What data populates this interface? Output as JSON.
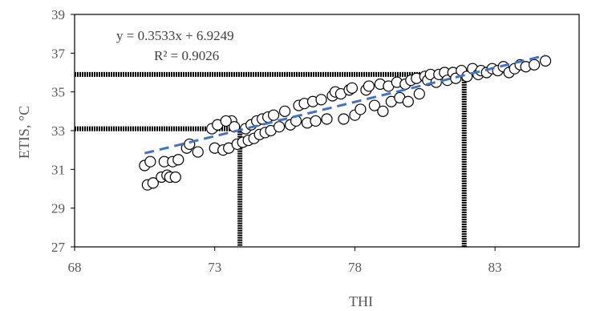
{
  "chart_data": {
    "type": "scatter",
    "xlabel": "THI",
    "ylabel": "ETIS, °C",
    "xlim": [
      68,
      86
    ],
    "ylim": [
      27,
      39
    ],
    "xticks": [
      68,
      73,
      78,
      83
    ],
    "yticks": [
      27,
      29,
      31,
      33,
      35,
      37,
      39
    ],
    "grid": false,
    "annotations": {
      "equation": "y = 0.3533x + 6.9249",
      "r_squared": "R² = 0.9026"
    },
    "trendline": {
      "slope": 0.3533,
      "intercept": 6.9249,
      "x_range": [
        70.5,
        84.8
      ],
      "color": "#4472C4",
      "style": "dashed"
    },
    "threshold_lines": [
      {
        "thi": 73.9,
        "etis": 33.1
      },
      {
        "thi": 81.9,
        "etis": 35.9
      }
    ],
    "series": [
      {
        "marker": "circle",
        "points": [
          [
            70.5,
            31.2
          ],
          [
            70.7,
            31.4
          ],
          [
            70.6,
            30.2
          ],
          [
            70.8,
            30.3
          ],
          [
            71.1,
            30.6
          ],
          [
            71.3,
            30.7
          ],
          [
            71.2,
            31.4
          ],
          [
            71.5,
            31.4
          ],
          [
            71.7,
            31.5
          ],
          [
            71.4,
            30.6
          ],
          [
            71.6,
            30.6
          ],
          [
            72.0,
            32.1
          ],
          [
            72.1,
            32.3
          ],
          [
            72.4,
            31.9
          ],
          [
            72.9,
            33.1
          ],
          [
            73.1,
            33.3
          ],
          [
            73.0,
            32.1
          ],
          [
            73.3,
            32.0
          ],
          [
            73.5,
            32.1
          ],
          [
            73.6,
            33.5
          ],
          [
            73.7,
            33.2
          ],
          [
            73.4,
            33.5
          ],
          [
            73.8,
            32.3
          ],
          [
            74.0,
            32.4
          ],
          [
            74.1,
            33.1
          ],
          [
            74.2,
            32.5
          ],
          [
            74.3,
            33.3
          ],
          [
            74.4,
            32.6
          ],
          [
            74.5,
            33.5
          ],
          [
            74.6,
            32.8
          ],
          [
            74.7,
            33.6
          ],
          [
            74.8,
            32.9
          ],
          [
            74.9,
            33.7
          ],
          [
            75.0,
            33.0
          ],
          [
            75.1,
            33.8
          ],
          [
            75.3,
            33.2
          ],
          [
            75.5,
            34.0
          ],
          [
            75.7,
            33.3
          ],
          [
            75.9,
            33.5
          ],
          [
            76.0,
            34.3
          ],
          [
            76.2,
            34.4
          ],
          [
            76.3,
            33.4
          ],
          [
            76.5,
            34.5
          ],
          [
            76.6,
            33.5
          ],
          [
            76.8,
            34.6
          ],
          [
            77.0,
            33.6
          ],
          [
            77.2,
            34.8
          ],
          [
            77.3,
            35.0
          ],
          [
            77.5,
            34.9
          ],
          [
            77.6,
            33.6
          ],
          [
            77.8,
            35.1
          ],
          [
            77.9,
            35.2
          ],
          [
            78.0,
            33.8
          ],
          [
            78.2,
            34.1
          ],
          [
            78.4,
            35.1
          ],
          [
            78.5,
            35.3
          ],
          [
            78.7,
            34.3
          ],
          [
            78.9,
            35.4
          ],
          [
            79.0,
            34.0
          ],
          [
            79.2,
            35.3
          ],
          [
            79.3,
            34.5
          ],
          [
            79.5,
            35.5
          ],
          [
            79.6,
            34.7
          ],
          [
            79.8,
            35.4
          ],
          [
            79.9,
            34.5
          ],
          [
            80.0,
            35.6
          ],
          [
            80.2,
            35.7
          ],
          [
            80.3,
            34.9
          ],
          [
            80.5,
            35.8
          ],
          [
            80.6,
            35.6
          ],
          [
            80.7,
            35.9
          ],
          [
            80.9,
            35.5
          ],
          [
            81.0,
            35.9
          ],
          [
            81.2,
            36.0
          ],
          [
            81.3,
            35.6
          ],
          [
            81.5,
            36.0
          ],
          [
            81.6,
            35.7
          ],
          [
            81.8,
            36.1
          ],
          [
            82.0,
            35.8
          ],
          [
            82.2,
            36.2
          ],
          [
            82.4,
            35.9
          ],
          [
            82.5,
            36.1
          ],
          [
            82.7,
            36.0
          ],
          [
            82.9,
            36.2
          ],
          [
            83.1,
            36.1
          ],
          [
            83.3,
            36.3
          ],
          [
            83.5,
            36.0
          ],
          [
            83.7,
            36.2
          ],
          [
            83.9,
            36.4
          ],
          [
            84.1,
            36.3
          ],
          [
            84.4,
            36.4
          ],
          [
            84.8,
            36.6
          ]
        ]
      }
    ]
  }
}
